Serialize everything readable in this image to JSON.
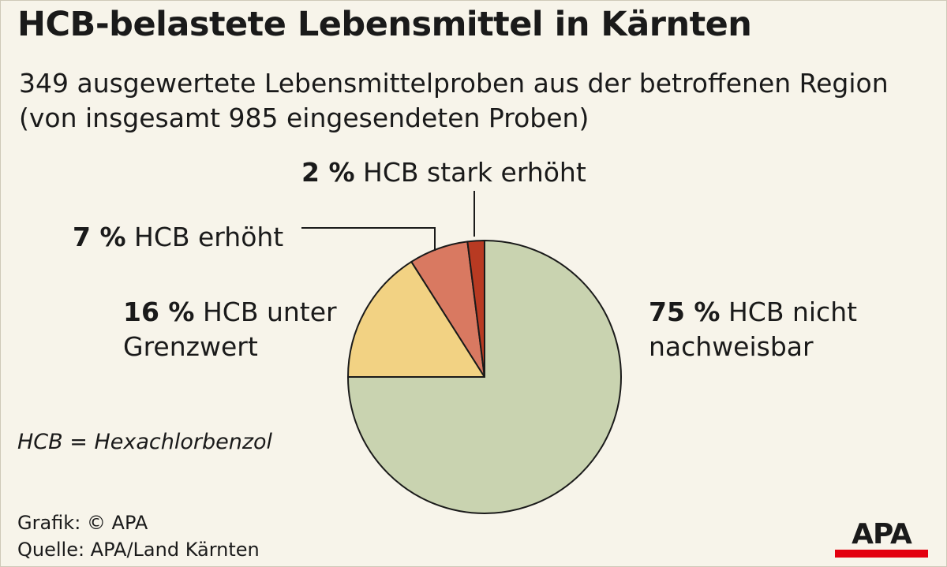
{
  "title": "HCB-belastete Lebensmittel in Kärnten",
  "subtitle": "349 ausgewertete Lebensmittelproben aus der betroffenen Region (von insgesamt 985 eingesendeten Proben)",
  "note": "HCB = Hexachlorbenzol",
  "footer": {
    "graphic": "Grafik: © APA",
    "source": "Quelle: APA/Land Kärnten"
  },
  "logo": "APA",
  "labels": {
    "nicht": {
      "pct": "75 %",
      "line1": "HCB nicht",
      "line2": "nachweisbar"
    },
    "unter": {
      "pct": "16 %",
      "line1": "HCB unter",
      "line2": "Grenzwert"
    },
    "erhoeht": {
      "pct": "7 %",
      "text": "HCB erhöht"
    },
    "stark": {
      "pct": "2 %",
      "text": "HCB stark erhöht"
    }
  },
  "chart_data": {
    "type": "pie",
    "slices": [
      {
        "label": "HCB nicht nachweisbar",
        "value": 75,
        "color": "#c9d3b0"
      },
      {
        "label": "HCB unter Grenzwert",
        "value": 16,
        "color": "#f2d283"
      },
      {
        "label": "HCB erhöht",
        "value": 7,
        "color": "#d97961"
      },
      {
        "label": "HCB stark erhöht",
        "value": 2,
        "color": "#b83a22"
      }
    ],
    "start": "12 o'clock",
    "direction": "clockwise"
  }
}
